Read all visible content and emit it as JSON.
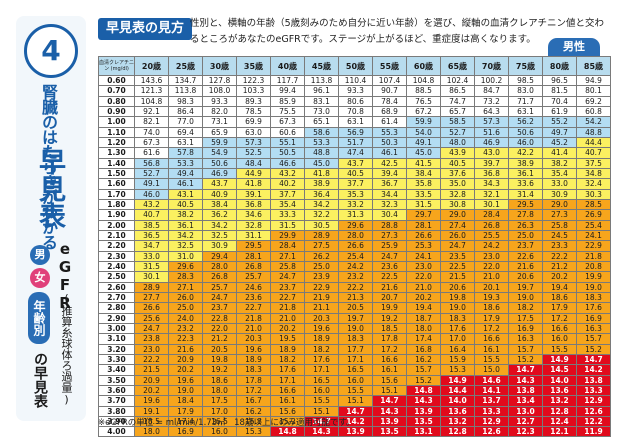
{
  "page": {
    "number": "4",
    "subtitle": "腎臓のはたらきがわかる",
    "title": "早見表",
    "badge_male": "男",
    "badge_female": "女",
    "egfr": "eGFR",
    "method": "(推算糸球体ろ過量)",
    "tab_label": "年齢別",
    "trailing": "の早見表",
    "heading": "早見表の見方",
    "description": "性別と、横軸の年齢（5歳刻みのため自分に近い年齢）を選び、縦軸の血清クレアチニン値と交わるところがあなたのeGFRです。ステージが上がるほど、重症度は高くなります。",
    "gender_tab": "男性",
    "footnote": "※eGFRの単位 = ml/min/1.73㎡　18歳以上にのみ適用可能です。"
  },
  "table": {
    "corner_label": "血清クレアチニン (mg/dl)",
    "ages": [
      "20歳",
      "25歳",
      "30歳",
      "35歳",
      "40歳",
      "45歳",
      "50歳",
      "55歳",
      "60歳",
      "65歳",
      "70歳",
      "75歳",
      "80歳",
      "85歳"
    ],
    "colors": {
      "g1": "#ffffff",
      "g2": "#b3ddf3",
      "g3a": "#fbf060",
      "g3b": "#f7a51c",
      "g4": "#f36e1c",
      "g5": "#e10a1c"
    },
    "rows": [
      {
        "cr": "0.60",
        "v": [
          "143.6",
          "134.7",
          "127.8",
          "122.3",
          "117.7",
          "113.8",
          "110.4",
          "107.4",
          "104.8",
          "102.4",
          "100.2",
          "98.5",
          "96.5",
          "94.9"
        ]
      },
      {
        "cr": "0.70",
        "v": [
          "121.3",
          "113.8",
          "108.0",
          "103.3",
          "99.4",
          "96.1",
          "93.3",
          "90.7",
          "88.5",
          "86.5",
          "84.7",
          "83.0",
          "81.5",
          "80.1"
        ]
      },
      {
        "cr": "0.80",
        "v": [
          "104.8",
          "98.3",
          "93.3",
          "89.3",
          "85.9",
          "83.1",
          "80.6",
          "78.4",
          "76.5",
          "74.7",
          "73.2",
          "71.7",
          "70.4",
          "69.2"
        ]
      },
      {
        "cr": "0.90",
        "v": [
          "92.1",
          "86.4",
          "82.0",
          "78.5",
          "75.5",
          "73.0",
          "70.8",
          "68.9",
          "67.2",
          "65.7",
          "64.3",
          "63.1",
          "61.9",
          "60.8"
        ]
      },
      {
        "cr": "1.00",
        "v": [
          "82.1",
          "77.0",
          "73.1",
          "69.9",
          "67.3",
          "65.1",
          "63.1",
          "61.4",
          "59.9",
          "58.5",
          "57.3",
          "56.2",
          "55.2",
          "54.2"
        ]
      },
      {
        "cr": "1.10",
        "v": [
          "74.0",
          "69.4",
          "65.9",
          "63.0",
          "60.6",
          "58.6",
          "56.9",
          "55.3",
          "54.0",
          "52.7",
          "51.6",
          "50.6",
          "49.7",
          "48.8"
        ]
      },
      {
        "cr": "1.20",
        "v": [
          "67.3",
          "63.1",
          "59.9",
          "57.3",
          "55.1",
          "53.3",
          "51.7",
          "50.3",
          "49.1",
          "48.0",
          "46.9",
          "46.0",
          "45.2",
          "44.4"
        ]
      },
      {
        "cr": "1.30",
        "v": [
          "61.6",
          "57.8",
          "54.9",
          "52.5",
          "50.5",
          "48.8",
          "47.4",
          "46.1",
          "45.0",
          "43.9",
          "43.0",
          "42.2",
          "41.4",
          "40.7"
        ]
      },
      {
        "cr": "1.40",
        "v": [
          "56.8",
          "53.3",
          "50.6",
          "48.4",
          "46.6",
          "45.0",
          "43.7",
          "42.5",
          "41.5",
          "40.5",
          "39.7",
          "38.9",
          "38.2",
          "37.5"
        ]
      },
      {
        "cr": "1.50",
        "v": [
          "52.7",
          "49.4",
          "46.9",
          "44.9",
          "43.2",
          "41.8",
          "40.5",
          "39.4",
          "38.4",
          "37.6",
          "36.8",
          "36.1",
          "35.4",
          "34.8"
        ]
      },
      {
        "cr": "1.60",
        "v": [
          "49.1",
          "46.1",
          "43.7",
          "41.8",
          "40.2",
          "38.9",
          "37.7",
          "36.7",
          "35.8",
          "35.0",
          "34.3",
          "33.6",
          "33.0",
          "32.4"
        ]
      },
      {
        "cr": "1.70",
        "v": [
          "46.0",
          "43.1",
          "40.9",
          "39.1",
          "37.7",
          "36.4",
          "35.3",
          "34.4",
          "33.5",
          "32.8",
          "32.1",
          "31.4",
          "30.9",
          "30.3"
        ]
      },
      {
        "cr": "1.80",
        "v": [
          "43.2",
          "40.5",
          "38.4",
          "36.8",
          "35.4",
          "34.2",
          "33.2",
          "32.3",
          "31.5",
          "30.8",
          "30.1",
          "29.5",
          "29.0",
          "28.5"
        ]
      },
      {
        "cr": "1.90",
        "v": [
          "40.7",
          "38.2",
          "36.2",
          "34.6",
          "33.3",
          "32.2",
          "31.3",
          "30.4",
          "29.7",
          "29.0",
          "28.4",
          "27.8",
          "27.3",
          "26.9"
        ]
      },
      {
        "cr": "2.00",
        "v": [
          "38.5",
          "36.1",
          "34.2",
          "32.8",
          "31.5",
          "30.5",
          "29.6",
          "28.8",
          "28.1",
          "27.4",
          "26.8",
          "26.3",
          "25.8",
          "25.4"
        ]
      },
      {
        "cr": "2.10",
        "v": [
          "36.5",
          "34.2",
          "32.5",
          "31.1",
          "29.9",
          "28.9",
          "28.0",
          "27.3",
          "26.6",
          "26.0",
          "25.5",
          "25.0",
          "24.5",
          "24.1"
        ]
      },
      {
        "cr": "2.20",
        "v": [
          "34.7",
          "32.5",
          "30.9",
          "29.5",
          "28.4",
          "27.5",
          "26.6",
          "25.9",
          "25.3",
          "24.7",
          "24.2",
          "23.7",
          "23.3",
          "22.9"
        ]
      },
      {
        "cr": "2.30",
        "v": [
          "33.0",
          "31.0",
          "29.4",
          "28.1",
          "27.1",
          "26.2",
          "25.4",
          "24.7",
          "24.1",
          "23.5",
          "23.0",
          "22.6",
          "22.2",
          "21.8"
        ]
      },
      {
        "cr": "2.40",
        "v": [
          "31.5",
          "29.6",
          "28.0",
          "26.8",
          "25.8",
          "25.0",
          "24.2",
          "23.6",
          "23.0",
          "22.5",
          "22.0",
          "21.6",
          "21.2",
          "20.8"
        ]
      },
      {
        "cr": "2.50",
        "v": [
          "30.1",
          "28.3",
          "26.8",
          "25.7",
          "24.7",
          "23.9",
          "23.2",
          "22.5",
          "22.0",
          "21.5",
          "21.0",
          "20.6",
          "20.2",
          "19.9"
        ]
      },
      {
        "cr": "2.60",
        "v": [
          "28.9",
          "27.1",
          "25.7",
          "24.6",
          "23.7",
          "22.9",
          "22.2",
          "21.6",
          "21.0",
          "20.6",
          "20.1",
          "19.7",
          "19.4",
          "19.0"
        ]
      },
      {
        "cr": "2.70",
        "v": [
          "27.7",
          "26.0",
          "24.7",
          "23.6",
          "22.7",
          "21.9",
          "21.3",
          "20.7",
          "20.2",
          "19.8",
          "19.3",
          "19.0",
          "18.6",
          "18.3"
        ]
      },
      {
        "cr": "2.80",
        "v": [
          "26.6",
          "25.0",
          "23.7",
          "22.7",
          "21.8",
          "21.1",
          "20.5",
          "19.9",
          "19.4",
          "19.0",
          "18.6",
          "18.2",
          "17.9",
          "17.6"
        ]
      },
      {
        "cr": "2.90",
        "v": [
          "25.6",
          "24.0",
          "22.8",
          "21.8",
          "21.0",
          "20.3",
          "19.7",
          "19.2",
          "18.7",
          "18.3",
          "17.9",
          "17.5",
          "17.2",
          "16.9"
        ]
      },
      {
        "cr": "3.00",
        "v": [
          "24.7",
          "23.2",
          "22.0",
          "21.0",
          "20.2",
          "19.6",
          "19.0",
          "18.5",
          "18.0",
          "17.6",
          "17.2",
          "16.9",
          "16.6",
          "16.3"
        ]
      },
      {
        "cr": "3.10",
        "v": [
          "23.8",
          "22.3",
          "21.2",
          "20.3",
          "19.5",
          "18.9",
          "18.3",
          "17.8",
          "17.4",
          "17.0",
          "16.6",
          "16.3",
          "16.0",
          "15.7"
        ]
      },
      {
        "cr": "3.20",
        "v": [
          "23.0",
          "21.6",
          "20.5",
          "19.6",
          "18.9",
          "18.2",
          "17.7",
          "17.2",
          "16.8",
          "16.4",
          "16.1",
          "15.7",
          "15.5",
          "15.2"
        ]
      },
      {
        "cr": "3.30",
        "v": [
          "22.2",
          "20.9",
          "19.8",
          "18.9",
          "18.2",
          "17.6",
          "17.1",
          "16.6",
          "16.2",
          "15.9",
          "15.5",
          "15.2",
          "14.9",
          "14.7"
        ]
      },
      {
        "cr": "3.40",
        "v": [
          "21.5",
          "20.2",
          "19.2",
          "18.3",
          "17.6",
          "17.1",
          "16.5",
          "16.1",
          "15.7",
          "15.3",
          "15.0",
          "14.7",
          "14.5",
          "14.2"
        ]
      },
      {
        "cr": "3.50",
        "v": [
          "20.9",
          "19.6",
          "18.6",
          "17.8",
          "17.1",
          "16.5",
          "16.0",
          "15.6",
          "15.2",
          "14.9",
          "14.6",
          "14.3",
          "14.0",
          "13.8"
        ]
      },
      {
        "cr": "3.60",
        "v": [
          "20.2",
          "19.0",
          "18.0",
          "17.2",
          "16.6",
          "16.0",
          "15.5",
          "15.1",
          "14.8",
          "14.4",
          "14.1",
          "13.8",
          "13.6",
          "13.3"
        ]
      },
      {
        "cr": "3.70",
        "v": [
          "19.6",
          "18.4",
          "17.5",
          "16.7",
          "16.1",
          "15.5",
          "15.1",
          "14.7",
          "14.3",
          "14.0",
          "13.7",
          "13.4",
          "13.2",
          "12.9"
        ]
      },
      {
        "cr": "3.80",
        "v": [
          "19.1",
          "17.9",
          "17.0",
          "16.2",
          "15.6",
          "15.1",
          "14.7",
          "14.3",
          "13.9",
          "13.6",
          "13.3",
          "13.0",
          "12.8",
          "12.6"
        ]
      },
      {
        "cr": "3.90",
        "v": [
          "18.5",
          "17.4",
          "16.5",
          "15.8",
          "15.2",
          "14.7",
          "14.2",
          "13.9",
          "13.5",
          "13.2",
          "12.9",
          "12.7",
          "12.4",
          "12.2"
        ]
      },
      {
        "cr": "4.00",
        "v": [
          "18.0",
          "16.9",
          "16.0",
          "15.3",
          "14.8",
          "14.3",
          "13.9",
          "13.5",
          "13.1",
          "12.8",
          "12.6",
          "12.3",
          "12.1",
          "11.9"
        ]
      }
    ]
  }
}
